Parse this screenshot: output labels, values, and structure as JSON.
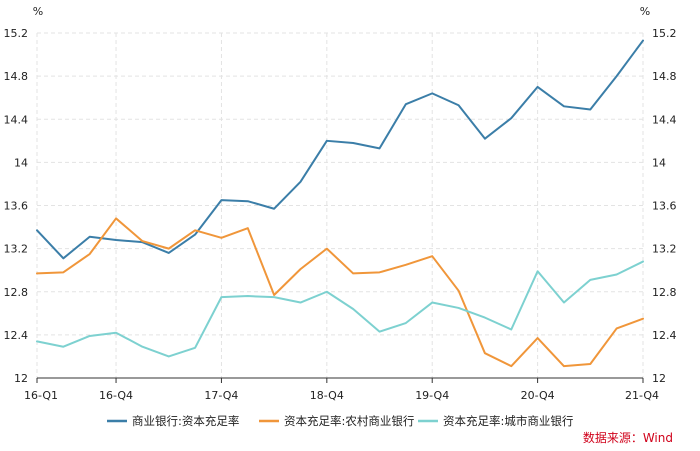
{
  "chart_data": {
    "type": "line",
    "unit_left": "%",
    "unit_right": "%",
    "ylim": [
      12,
      15.2
    ],
    "yticks": [
      12,
      12.4,
      12.8,
      13.2,
      13.6,
      14,
      14.4,
      14.8,
      15.2
    ],
    "ytick_labels": [
      "12",
      "12.4",
      "12.8",
      "13.2",
      "13.6",
      "14",
      "14.4",
      "14.8",
      "15.2"
    ],
    "x": [
      "16-Q1",
      "16-Q2",
      "16-Q3",
      "16-Q4",
      "17-Q1",
      "17-Q2",
      "17-Q3",
      "17-Q4",
      "18-Q1",
      "18-Q2",
      "18-Q3",
      "18-Q4",
      "19-Q1",
      "19-Q2",
      "19-Q3",
      "19-Q4",
      "20-Q1",
      "20-Q2",
      "20-Q3",
      "20-Q4",
      "21-Q1",
      "21-Q2",
      "21-Q3",
      "21-Q4"
    ],
    "xtick_labels": [
      "16-Q1",
      "16-Q4",
      "17-Q4",
      "18-Q4",
      "19-Q4",
      "20-Q4",
      "21-Q4"
    ],
    "series": [
      {
        "name": "商业银行:资本充足率",
        "color": "#3b7ea8",
        "values": [
          13.37,
          13.11,
          13.31,
          13.28,
          13.26,
          13.16,
          13.33,
          13.65,
          13.64,
          13.57,
          13.82,
          14.2,
          14.18,
          14.13,
          14.54,
          14.64,
          14.53,
          14.22,
          14.41,
          14.7,
          14.52,
          14.49,
          14.8,
          15.13
        ]
      },
      {
        "name": "资本充足率:农村商业银行",
        "color": "#f0963a",
        "values": [
          12.97,
          12.98,
          13.15,
          13.48,
          13.27,
          13.2,
          13.37,
          13.3,
          13.39,
          12.77,
          13.01,
          13.2,
          12.97,
          12.98,
          13.05,
          13.13,
          12.81,
          12.23,
          12.11,
          12.37,
          12.11,
          12.13,
          12.46,
          12.55
        ]
      },
      {
        "name": "资本充足率:城市商业银行",
        "color": "#7dd1d0",
        "values": [
          12.34,
          12.29,
          12.39,
          12.42,
          12.29,
          12.2,
          12.28,
          12.75,
          12.76,
          12.75,
          12.7,
          12.8,
          12.64,
          12.43,
          12.51,
          12.7,
          12.65,
          12.56,
          12.45,
          12.99,
          12.7,
          12.91,
          12.96,
          13.08
        ]
      }
    ],
    "legend_position": "bottom",
    "grid": true,
    "source": "数据来源：Wind"
  }
}
